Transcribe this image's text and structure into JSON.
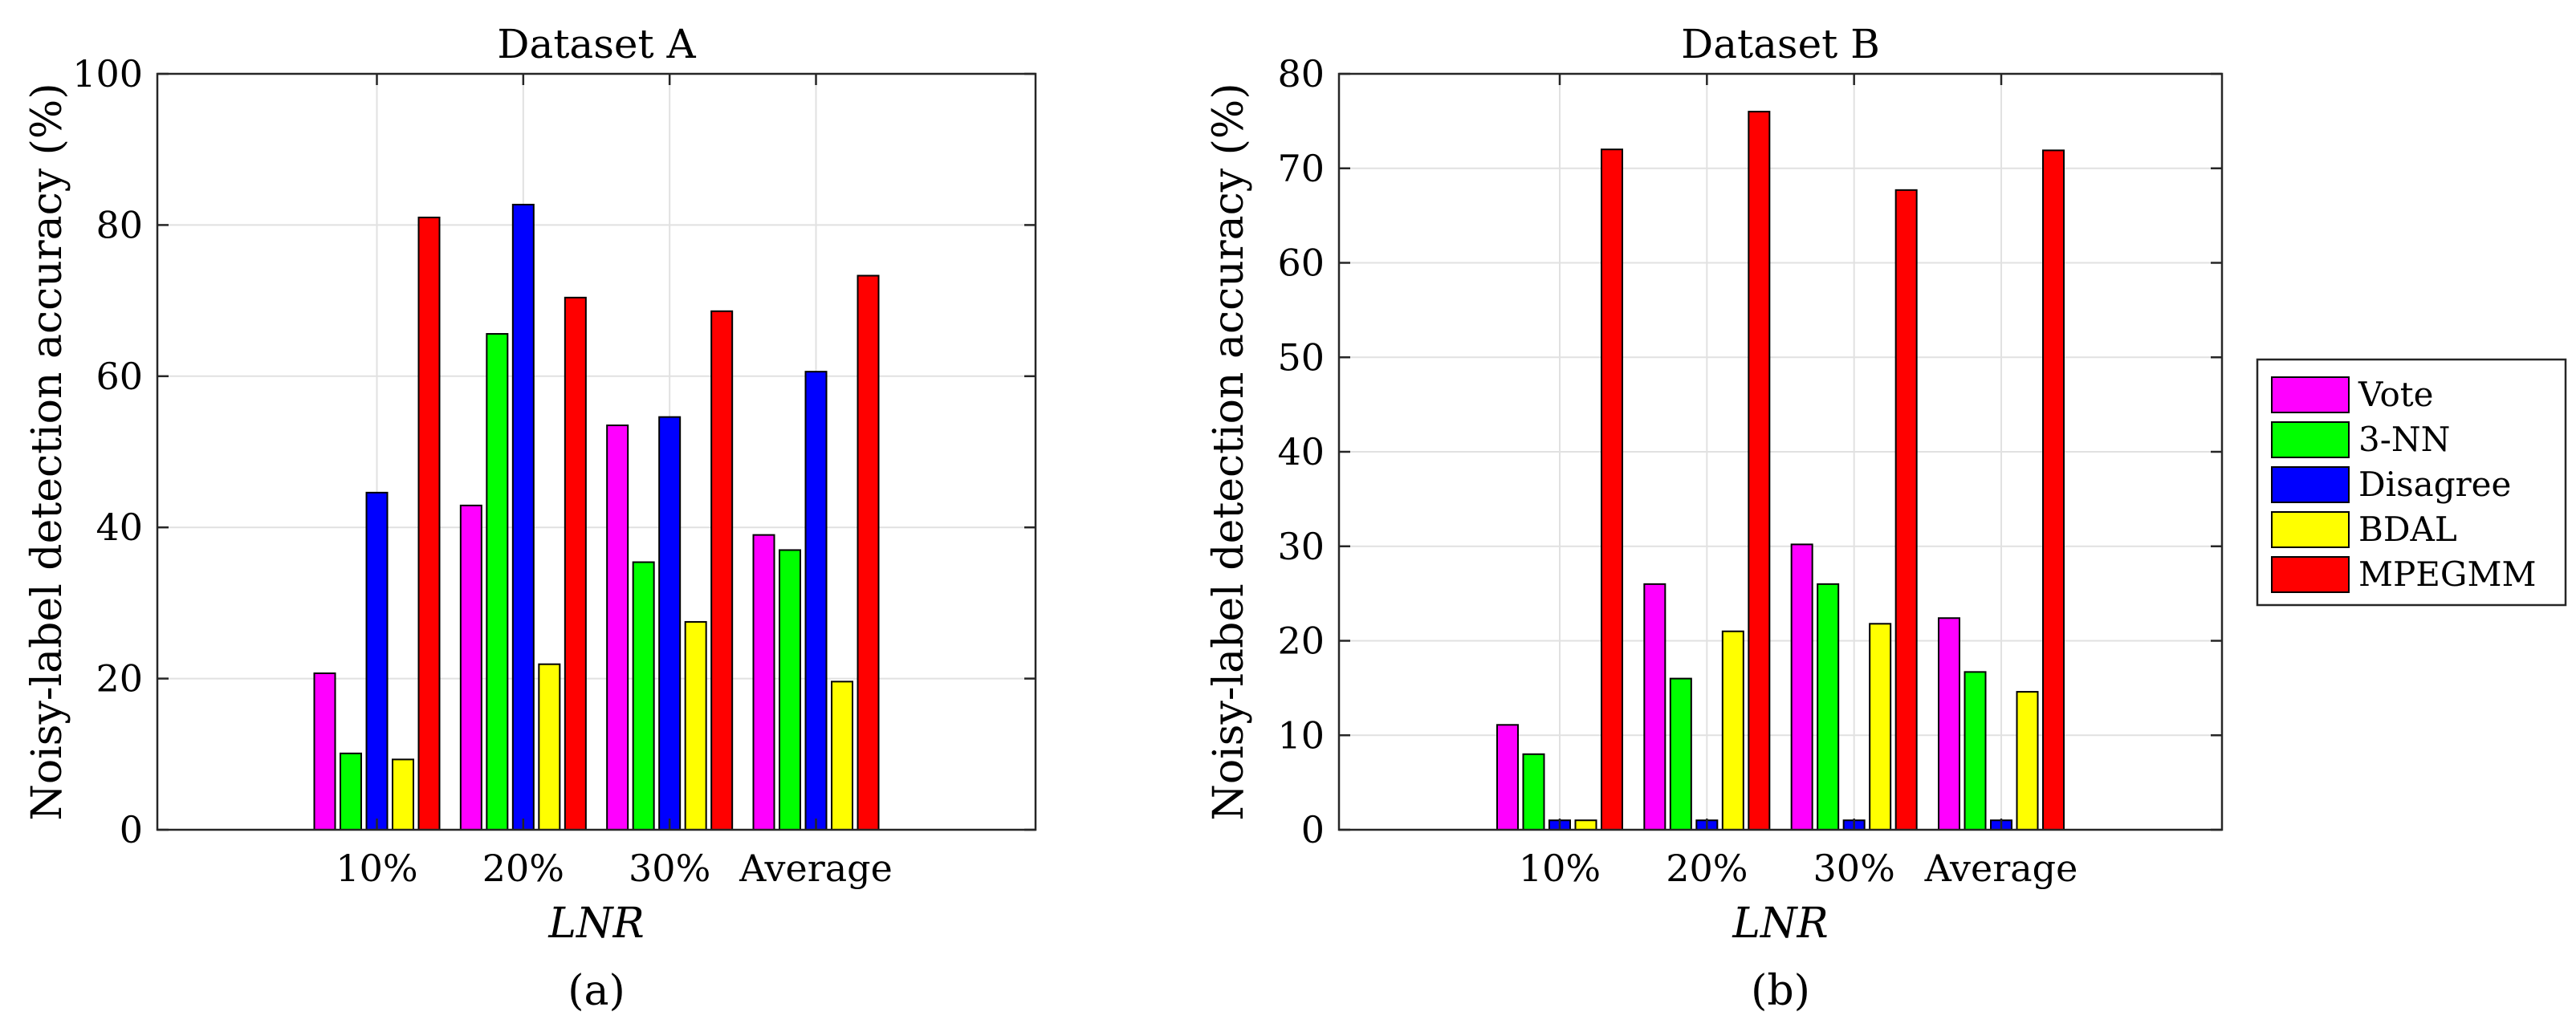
{
  "series_colors": {
    "Vote": "#ff00ff",
    "3-NN": "#00ff00",
    "Disagree": "#0000ff",
    "BDAL": "#ffff00",
    "MPEGMM": "#ff0000"
  },
  "legend": [
    "Vote",
    "3-NN",
    "Disagree",
    "BDAL",
    "MPEGMM"
  ],
  "chart_data": [
    {
      "type": "bar",
      "title": "Dataset A",
      "xlabel": "LNR",
      "ylabel": "Noisy-label detection accuracy (%)",
      "sublabel": "(a)",
      "categories": [
        "10%",
        "20%",
        "30%",
        "Average"
      ],
      "ylim": [
        0,
        100
      ],
      "yticks": [
        0,
        20,
        40,
        60,
        80,
        100
      ],
      "grid": true,
      "series": [
        {
          "name": "Vote",
          "values": [
            20.7,
            42.9,
            53.5,
            39.0
          ]
        },
        {
          "name": "3-NN",
          "values": [
            10.1,
            65.6,
            35.4,
            37.0
          ]
        },
        {
          "name": "Disagree",
          "values": [
            44.6,
            82.7,
            54.6,
            60.6
          ]
        },
        {
          "name": "BDAL",
          "values": [
            9.3,
            21.9,
            27.5,
            19.6
          ]
        },
        {
          "name": "MPEGMM",
          "values": [
            81.0,
            70.4,
            68.6,
            73.3
          ]
        }
      ]
    },
    {
      "type": "bar",
      "title": "Dataset B",
      "xlabel": "LNR",
      "ylabel": "Noisy-label detection accuracy (%)",
      "sublabel": "(b)",
      "categories": [
        "10%",
        "20%",
        "30%",
        "Average"
      ],
      "ylim": [
        0,
        80
      ],
      "yticks": [
        0,
        10,
        20,
        30,
        40,
        50,
        60,
        70,
        80
      ],
      "grid": true,
      "legend_position": "right",
      "series": [
        {
          "name": "Vote",
          "values": [
            11.1,
            26.0,
            30.2,
            22.4
          ]
        },
        {
          "name": "3-NN",
          "values": [
            8.0,
            16.0,
            26.0,
            16.7
          ]
        },
        {
          "name": "Disagree",
          "values": [
            1.0,
            1.0,
            1.0,
            1.0
          ]
        },
        {
          "name": "BDAL",
          "values": [
            1.0,
            21.0,
            21.8,
            14.6
          ]
        },
        {
          "name": "MPEGMM",
          "values": [
            72.0,
            76.0,
            67.7,
            71.9
          ]
        }
      ]
    }
  ]
}
